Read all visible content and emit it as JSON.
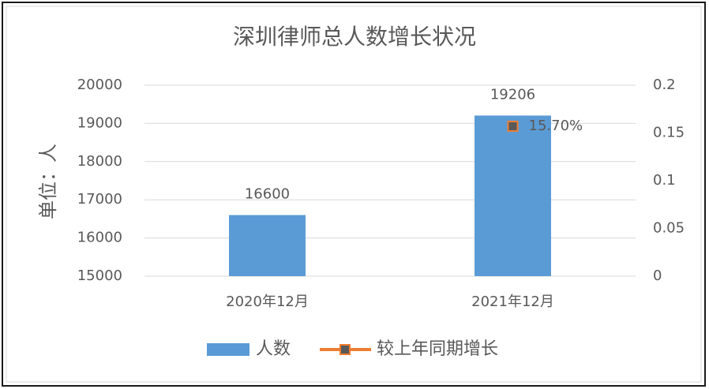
{
  "chart_data": {
    "type": "bar",
    "title": "深圳律师总人数增长状况",
    "y_label": "单位：人",
    "categories": [
      "2020年12月",
      "2021年12月"
    ],
    "series": [
      {
        "name": "人数",
        "type": "bar",
        "color": "#5b9bd5",
        "values": [
          16600,
          19206
        ]
      },
      {
        "name": "较上年同期增长",
        "type": "line",
        "axis": "y2",
        "color": "#ed7d31",
        "marker_color": "#595959",
        "values": [
          null,
          0.157
        ],
        "value_labels": [
          null,
          "15.70%"
        ]
      }
    ],
    "ylim": [
      15000,
      20000
    ],
    "yticks": [
      15000,
      16000,
      17000,
      18000,
      19000,
      20000
    ],
    "y2lim": [
      0,
      0.2
    ],
    "y2ticks": [
      0,
      0.05,
      0.1,
      0.15,
      0.2
    ],
    "grid": true,
    "legend": "bottom"
  }
}
